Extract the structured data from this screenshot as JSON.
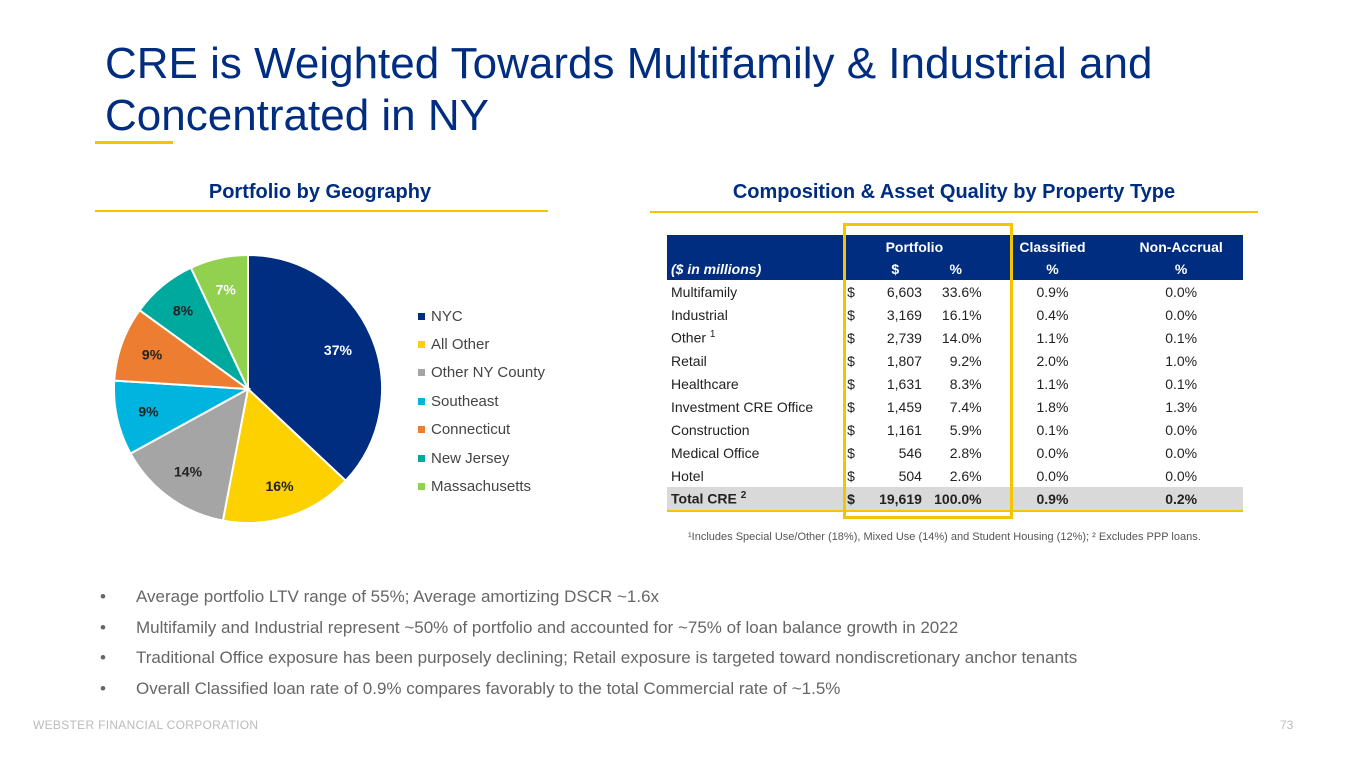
{
  "title": "CRE is Weighted Towards Multifamily & Industrial and Concentrated in NY",
  "geo_section": {
    "heading": "Portfolio by Geography"
  },
  "comp_section": {
    "heading": "Composition & Asset Quality by Property Type"
  },
  "chart_data": {
    "type": "pie",
    "title": "Portfolio by Geography",
    "categories": [
      "NYC",
      "All Other",
      "Other NY County",
      "Southeast",
      "Connecticut",
      "New Jersey",
      "Massachusetts"
    ],
    "values": [
      37,
      16,
      14,
      9,
      9,
      8,
      7
    ],
    "labels": [
      "37%",
      "16%",
      "14%",
      "9%",
      "9%",
      "8%",
      "7%"
    ],
    "colors": [
      "#002d80",
      "#fdd000",
      "#a5a5a5",
      "#00b4e0",
      "#ed7d31",
      "#00a99d",
      "#92d050"
    ],
    "label_colors": [
      "#ffffff",
      "#222222",
      "#222222",
      "#222222",
      "#222222",
      "#222222",
      "#ffffff"
    ],
    "legend_position": "right"
  },
  "table": {
    "header1": {
      "portfolio": "Portfolio",
      "classified": "Classified",
      "nonaccrual": "Non-Accrual"
    },
    "header2": {
      "units": "($ in millions)",
      "dollar": "$",
      "pct": "%",
      "cls_pct": "%",
      "nac_pct": "%"
    },
    "rows": [
      {
        "name": "Multifamily",
        "sup": "",
        "dollar": "$",
        "amount": "6,603",
        "pct": "33.6%",
        "classified": "0.9%",
        "nonaccrual": "0.0%"
      },
      {
        "name": "Industrial",
        "sup": "",
        "dollar": "$",
        "amount": "3,169",
        "pct": "16.1%",
        "classified": "0.4%",
        "nonaccrual": "0.0%"
      },
      {
        "name": "Other",
        "sup": "1",
        "dollar": "$",
        "amount": "2,739",
        "pct": "14.0%",
        "classified": "1.1%",
        "nonaccrual": "0.1%"
      },
      {
        "name": "Retail",
        "sup": "",
        "dollar": "$",
        "amount": "1,807",
        "pct": "9.2%",
        "classified": "2.0%",
        "nonaccrual": "1.0%"
      },
      {
        "name": "Healthcare",
        "sup": "",
        "dollar": "$",
        "amount": "1,631",
        "pct": "8.3%",
        "classified": "1.1%",
        "nonaccrual": "0.1%"
      },
      {
        "name": "Investment CRE Office",
        "sup": "",
        "dollar": "$",
        "amount": "1,459",
        "pct": "7.4%",
        "classified": "1.8%",
        "nonaccrual": "1.3%"
      },
      {
        "name": "Construction",
        "sup": "",
        "dollar": "$",
        "amount": "1,161",
        "pct": "5.9%",
        "classified": "0.1%",
        "nonaccrual": "0.0%"
      },
      {
        "name": "Medical Office",
        "sup": "",
        "dollar": "$",
        "amount": "546",
        "pct": "2.8%",
        "classified": "0.0%",
        "nonaccrual": "0.0%"
      },
      {
        "name": "Hotel",
        "sup": "",
        "dollar": "$",
        "amount": "504",
        "pct": "2.6%",
        "classified": "0.0%",
        "nonaccrual": "0.0%"
      }
    ],
    "total": {
      "name": "Total CRE",
      "sup": "2",
      "dollar": "$",
      "amount": "19,619",
      "pct": "100.0%",
      "classified": "0.9%",
      "nonaccrual": "0.2%"
    }
  },
  "footnote": "¹Includes Special Use/Other (18%), Mixed Use (14%) and Student Housing (12%); ² Excludes PPP loans.",
  "bullets": [
    "Average portfolio LTV range of 55%; Average amortizing DSCR ~1.6x",
    "Multifamily and Industrial represent ~50% of portfolio and accounted for ~75% of loan balance growth in 2022",
    "Traditional Office exposure has been purposely declining; Retail exposure is targeted toward nondiscretionary anchor tenants",
    "Overall Classified loan rate of 0.9% compares favorably to the total Commercial rate of ~1.5%"
  ],
  "footer": {
    "company": "WEBSTER FINANCIAL CORPORATION",
    "page": "73"
  }
}
